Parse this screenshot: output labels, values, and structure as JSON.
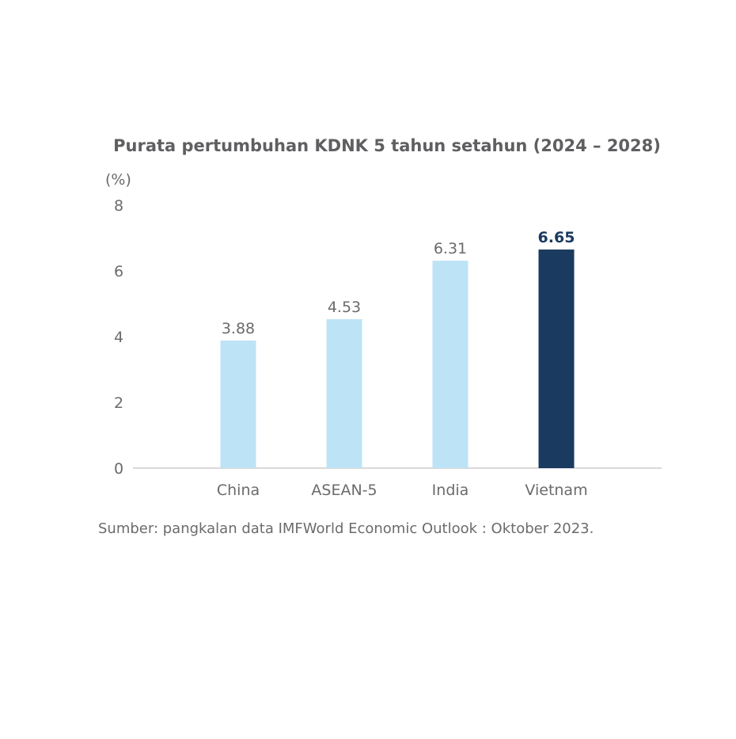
{
  "chart_data": {
    "type": "bar",
    "title": "Purata pertumbuhan KDNK 5 tahun setahun (2024 – 2028)",
    "unit_label": "(%)",
    "categories": [
      "China",
      "ASEAN-5",
      "India",
      "Vietnam"
    ],
    "values": [
      3.88,
      4.53,
      6.31,
      6.65
    ],
    "value_labels": [
      "3.88",
      "4.53",
      "6.31",
      "6.65"
    ],
    "highlighted_category": "Vietnam",
    "ylim": [
      0,
      8
    ],
    "yticks": [
      0,
      2,
      4,
      6,
      8
    ],
    "ytick_labels": [
      "0",
      "2",
      "4",
      "6",
      "8"
    ],
    "grid": false,
    "colors": {
      "bar": "#bde3f6",
      "highlight_bar": "#1a3a5f",
      "axis": "#d9d9d9",
      "text": "#6b6b6e",
      "highlight_text": "#1a3a5f"
    },
    "source": "Sumber: pangkalan data IMFWorld Economic Outlook : Oktober 2023."
  }
}
